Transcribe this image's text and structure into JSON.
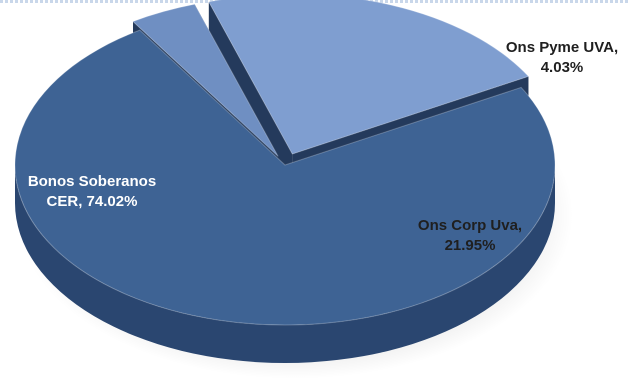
{
  "chart_data": {
    "type": "pie",
    "style": "3d-exploded",
    "title": "",
    "slices": [
      {
        "name": "Bonos Soberanos CER",
        "label_lines": [
          "Bonos Soberanos",
          "CER, 74.02%"
        ],
        "value": 74.02,
        "color": "#3e6394",
        "side_color": "#2a4670",
        "label_color": "#ffffff"
      },
      {
        "name": "Ons Pyme UVA",
        "label_lines": [
          "Ons Pyme UVA,",
          "4.03%"
        ],
        "value": 4.03,
        "color": "#6f8fc2",
        "side_color": "#4a6493",
        "label_color": "#1f1f1f"
      },
      {
        "name": "Ons Corp Uva",
        "label_lines": [
          "Ons Corp Uva,",
          "21.95%"
        ],
        "value": 21.95,
        "color": "#7f9ed0",
        "side_color": "#394d6f",
        "label_color": "#1f1f1f"
      }
    ]
  }
}
